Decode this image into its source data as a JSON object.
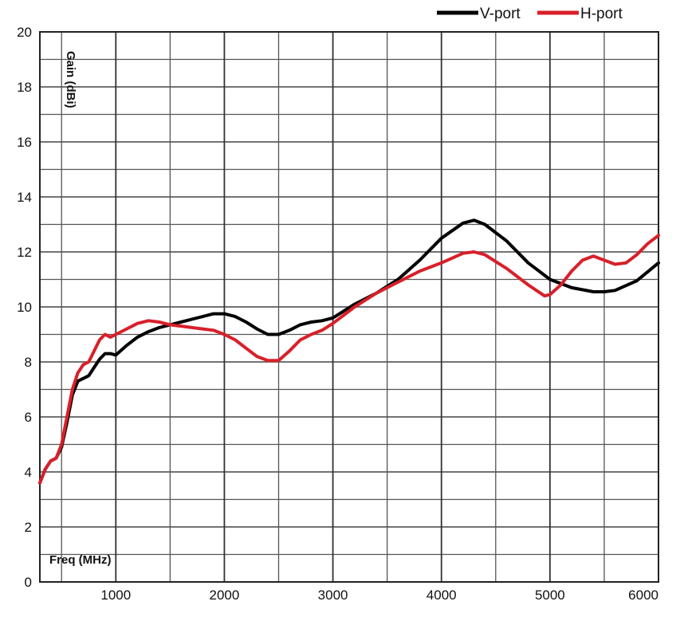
{
  "chart_data": {
    "type": "line",
    "title": "",
    "xlabel": "Freq (MHz)",
    "ylabel": "Gain (dBi)",
    "xlim": [
      300,
      6000
    ],
    "ylim": [
      0,
      20
    ],
    "x_ticks": [
      1000,
      2000,
      3000,
      4000,
      5000,
      6000
    ],
    "y_ticks": [
      0,
      2,
      4,
      6,
      8,
      10,
      12,
      14,
      16,
      18,
      20
    ],
    "grid": true,
    "legend_position": "top-right",
    "series": [
      {
        "name": "V-port",
        "color": "#000000",
        "points": [
          [
            300,
            3.6
          ],
          [
            350,
            4.1
          ],
          [
            400,
            4.4
          ],
          [
            450,
            4.5
          ],
          [
            500,
            4.9
          ],
          [
            550,
            5.8
          ],
          [
            600,
            6.8
          ],
          [
            650,
            7.3
          ],
          [
            700,
            7.4
          ],
          [
            750,
            7.5
          ],
          [
            800,
            7.8
          ],
          [
            850,
            8.1
          ],
          [
            900,
            8.3
          ],
          [
            950,
            8.3
          ],
          [
            1000,
            8.25
          ],
          [
            1100,
            8.6
          ],
          [
            1200,
            8.9
          ],
          [
            1300,
            9.1
          ],
          [
            1400,
            9.25
          ],
          [
            1500,
            9.35
          ],
          [
            1600,
            9.45
          ],
          [
            1700,
            9.55
          ],
          [
            1800,
            9.65
          ],
          [
            1900,
            9.75
          ],
          [
            2000,
            9.75
          ],
          [
            2100,
            9.65
          ],
          [
            2200,
            9.45
          ],
          [
            2300,
            9.2
          ],
          [
            2400,
            9.0
          ],
          [
            2500,
            9.0
          ],
          [
            2600,
            9.15
          ],
          [
            2700,
            9.35
          ],
          [
            2800,
            9.45
          ],
          [
            2900,
            9.5
          ],
          [
            3000,
            9.6
          ],
          [
            3200,
            10.1
          ],
          [
            3400,
            10.5
          ],
          [
            3600,
            11.0
          ],
          [
            3800,
            11.7
          ],
          [
            4000,
            12.5
          ],
          [
            4200,
            13.05
          ],
          [
            4300,
            13.15
          ],
          [
            4400,
            13.0
          ],
          [
            4600,
            12.4
          ],
          [
            4800,
            11.6
          ],
          [
            5000,
            11.0
          ],
          [
            5200,
            10.7
          ],
          [
            5400,
            10.55
          ],
          [
            5500,
            10.55
          ],
          [
            5600,
            10.6
          ],
          [
            5800,
            10.95
          ],
          [
            6000,
            11.6
          ]
        ]
      },
      {
        "name": "H-port",
        "color": "#d8202a",
        "points": [
          [
            300,
            3.6
          ],
          [
            350,
            4.1
          ],
          [
            400,
            4.4
          ],
          [
            450,
            4.5
          ],
          [
            500,
            5.0
          ],
          [
            550,
            6.0
          ],
          [
            600,
            7.0
          ],
          [
            650,
            7.6
          ],
          [
            700,
            7.9
          ],
          [
            750,
            8.0
          ],
          [
            800,
            8.4
          ],
          [
            850,
            8.8
          ],
          [
            900,
            9.0
          ],
          [
            950,
            8.9
          ],
          [
            1000,
            9.0
          ],
          [
            1100,
            9.2
          ],
          [
            1200,
            9.4
          ],
          [
            1300,
            9.5
          ],
          [
            1400,
            9.45
          ],
          [
            1500,
            9.35
          ],
          [
            1600,
            9.3
          ],
          [
            1700,
            9.25
          ],
          [
            1800,
            9.2
          ],
          [
            1900,
            9.15
          ],
          [
            2000,
            9.0
          ],
          [
            2100,
            8.8
          ],
          [
            2200,
            8.5
          ],
          [
            2300,
            8.2
          ],
          [
            2400,
            8.05
          ],
          [
            2500,
            8.05
          ],
          [
            2600,
            8.4
          ],
          [
            2700,
            8.8
          ],
          [
            2800,
            9.0
          ],
          [
            2900,
            9.15
          ],
          [
            3000,
            9.4
          ],
          [
            3200,
            10.0
          ],
          [
            3400,
            10.5
          ],
          [
            3600,
            10.9
          ],
          [
            3800,
            11.3
          ],
          [
            4000,
            11.6
          ],
          [
            4200,
            11.95
          ],
          [
            4300,
            12.0
          ],
          [
            4400,
            11.9
          ],
          [
            4600,
            11.4
          ],
          [
            4800,
            10.8
          ],
          [
            4950,
            10.4
          ],
          [
            5000,
            10.45
          ],
          [
            5100,
            10.8
          ],
          [
            5200,
            11.3
          ],
          [
            5300,
            11.7
          ],
          [
            5400,
            11.85
          ],
          [
            5500,
            11.7
          ],
          [
            5600,
            11.55
          ],
          [
            5700,
            11.6
          ],
          [
            5800,
            11.9
          ],
          [
            5900,
            12.3
          ],
          [
            6000,
            12.6
          ]
        ]
      }
    ]
  }
}
